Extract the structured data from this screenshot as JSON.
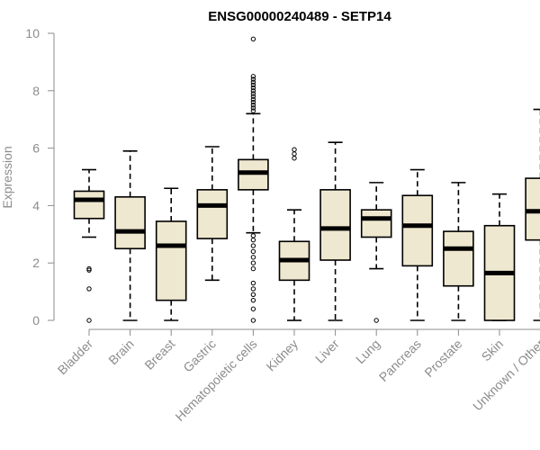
{
  "chart_data": {
    "type": "boxplot",
    "title": "ENSG00000240489 - SETP14",
    "ylabel": "Expression",
    "xlabel": "",
    "ylim": [
      0,
      10
    ],
    "yticks": [
      0,
      2,
      4,
      6,
      8,
      10
    ],
    "grid": false,
    "colors": {
      "box_fill": "#efe8d0",
      "box_stroke": "#000000",
      "axis": "#8c8c8c"
    },
    "categories": [
      "Bladder",
      "Brain",
      "Breast",
      "Gastric",
      "Hematopoietic cells",
      "Kidney",
      "Liver",
      "Lung",
      "Pancreas",
      "Prostate",
      "Skin",
      "Unknown / Other"
    ],
    "boxes": [
      {
        "category": "Bladder",
        "min": 2.9,
        "q1": 3.55,
        "median": 4.2,
        "q3": 4.5,
        "max": 5.25,
        "outliers": [
          1.75,
          1.8,
          1.1,
          0.0
        ]
      },
      {
        "category": "Brain",
        "min": 0.0,
        "q1": 2.5,
        "median": 3.1,
        "q3": 4.3,
        "max": 5.9,
        "outliers": []
      },
      {
        "category": "Breast",
        "min": 0.0,
        "q1": 0.7,
        "median": 2.6,
        "q3": 3.45,
        "max": 4.6,
        "outliers": []
      },
      {
        "category": "Gastric",
        "min": 1.4,
        "q1": 2.85,
        "median": 4.0,
        "q3": 4.55,
        "max": 6.05,
        "outliers": []
      },
      {
        "category": "Hematopoietic cells",
        "min": 3.05,
        "q1": 4.55,
        "median": 5.15,
        "q3": 5.6,
        "max": 7.2,
        "outliers": [
          9.8,
          8.5,
          8.4,
          8.3,
          8.2,
          8.1,
          8.0,
          7.9,
          7.8,
          7.7,
          7.6,
          7.5,
          7.4,
          7.3,
          2.95,
          2.8,
          2.6,
          2.4,
          2.2,
          2.0,
          1.8,
          1.3,
          1.1,
          0.9,
          0.7,
          0.4,
          0.0
        ]
      },
      {
        "category": "Kidney",
        "min": 0.0,
        "q1": 1.4,
        "median": 2.1,
        "q3": 2.75,
        "max": 3.85,
        "outliers": [
          5.95,
          5.8,
          5.65
        ]
      },
      {
        "category": "Liver",
        "min": 0.0,
        "q1": 2.1,
        "median": 3.2,
        "q3": 4.55,
        "max": 6.2,
        "outliers": []
      },
      {
        "category": "Lung",
        "min": 1.8,
        "q1": 2.9,
        "median": 3.55,
        "q3": 3.85,
        "max": 4.8,
        "outliers": [
          0.0
        ]
      },
      {
        "category": "Pancreas",
        "min": 0.0,
        "q1": 1.9,
        "median": 3.3,
        "q3": 4.35,
        "max": 5.25,
        "outliers": []
      },
      {
        "category": "Prostate",
        "min": 0.0,
        "q1": 1.2,
        "median": 2.5,
        "q3": 3.1,
        "max": 4.8,
        "outliers": []
      },
      {
        "category": "Skin",
        "min": 0.0,
        "q1": 0.0,
        "median": 1.65,
        "q3": 3.3,
        "max": 4.4,
        "outliers": []
      },
      {
        "category": "Unknown / Other",
        "min": 0.0,
        "q1": 2.8,
        "median": 3.8,
        "q3": 4.95,
        "max": 7.35,
        "outliers": []
      }
    ]
  }
}
